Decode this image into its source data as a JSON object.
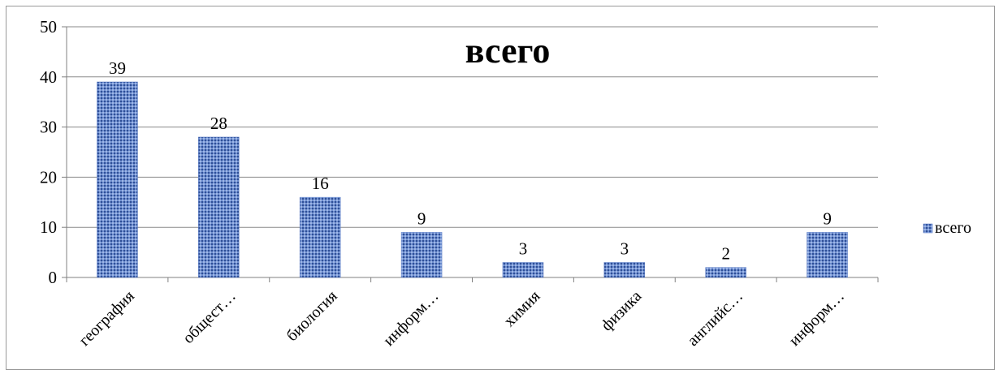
{
  "chart_data": {
    "type": "bar",
    "title": "всего",
    "categories": [
      "география",
      "общест…",
      "биология",
      "информ…",
      "химия",
      "физика",
      "английс…",
      "информ…"
    ],
    "series": [
      {
        "name": "всего",
        "values": [
          39,
          28,
          16,
          9,
          3,
          3,
          2,
          9
        ]
      }
    ],
    "data_labels": [
      "39",
      "28",
      "16",
      "9",
      "3",
      "3",
      "2",
      "9"
    ],
    "y_ticks": [
      "0",
      "10",
      "20",
      "30",
      "40",
      "50"
    ],
    "ylim": [
      0,
      50
    ],
    "grid": true,
    "legend": "right",
    "colors": {
      "bar_fill": "#6f8fd0",
      "bar_pattern": "#2f4f96",
      "grid": "#8a8a8a",
      "axis": "#808080",
      "frame": "#9a9a9a"
    }
  }
}
